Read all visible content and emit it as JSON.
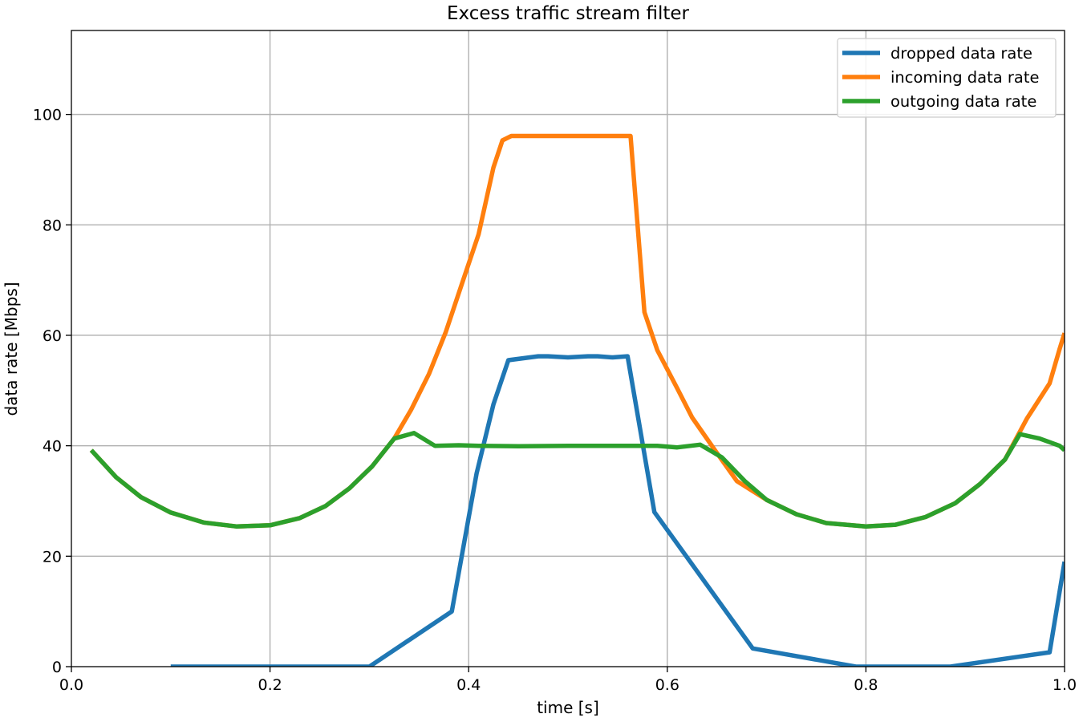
{
  "chart_data": {
    "type": "line",
    "title": "Excess traffic stream filter",
    "xlabel": "time [s]",
    "ylabel": "data rate [Mbps]",
    "xlim": [
      0.0,
      1.0
    ],
    "ylim": [
      0,
      115.2
    ],
    "xticks": [
      0.0,
      0.2,
      0.4,
      0.6,
      0.8,
      1.0
    ],
    "xtick_labels": [
      "0.0",
      "0.2",
      "0.4",
      "0.6",
      "0.8",
      "1.0"
    ],
    "yticks": [
      0,
      20,
      40,
      60,
      80,
      100
    ],
    "ytick_labels": [
      "0",
      "20",
      "40",
      "60",
      "80",
      "100"
    ],
    "grid": true,
    "legend_position": "top-right",
    "series": [
      {
        "name": "dropped data rate",
        "color": "#1f77b4",
        "x": [
          0.1,
          0.2,
          0.3,
          0.383,
          0.408,
          0.425,
          0.44,
          0.47,
          0.48,
          0.5,
          0.52,
          0.53,
          0.545,
          0.56,
          0.587,
          0.686,
          0.79,
          0.885,
          0.985,
          1.0
        ],
        "y": [
          0,
          0,
          0,
          10,
          35,
          47.5,
          55.5,
          56.2,
          56.2,
          56,
          56.2,
          56.2,
          56,
          56.2,
          28,
          3.3,
          0,
          0,
          2.6,
          19
        ]
      },
      {
        "name": "incoming data rate",
        "color": "#ff7f0e",
        "x": [
          0.02,
          0.045,
          0.07,
          0.1,
          0.133,
          0.166,
          0.2,
          0.23,
          0.256,
          0.28,
          0.303,
          0.325,
          0.342,
          0.36,
          0.377,
          0.393,
          0.41,
          0.425,
          0.434,
          0.443,
          0.55,
          0.563,
          0.577,
          0.59,
          0.61,
          0.625,
          0.648,
          0.67,
          0.7,
          0.73,
          0.76,
          0.8,
          0.83,
          0.86,
          0.89,
          0.915,
          0.94,
          0.962,
          0.985,
          0.995,
          1.0
        ],
        "y": [
          39.2,
          34.3,
          30.7,
          27.9,
          26.1,
          25.4,
          25.6,
          26.9,
          29.1,
          32.3,
          36.3,
          41.3,
          46.5,
          53,
          60.6,
          69.2,
          78.3,
          90.4,
          95.3,
          96.1,
          96.1,
          96.1,
          64.2,
          57.3,
          50.4,
          45.1,
          39.2,
          33.6,
          30.2,
          27.6,
          26,
          25.4,
          25.7,
          27.1,
          29.6,
          33.1,
          37.5,
          44.9,
          51.3,
          57.5,
          60.4
        ]
      },
      {
        "name": "outgoing data rate",
        "color": "#2ca02c",
        "x": [
          0.02,
          0.045,
          0.07,
          0.1,
          0.133,
          0.166,
          0.2,
          0.23,
          0.256,
          0.28,
          0.303,
          0.325,
          0.345,
          0.366,
          0.39,
          0.41,
          0.45,
          0.5,
          0.55,
          0.59,
          0.61,
          0.633,
          0.655,
          0.678,
          0.7,
          0.73,
          0.76,
          0.8,
          0.83,
          0.86,
          0.89,
          0.915,
          0.94,
          0.955,
          0.975,
          0.995,
          1.0
        ],
        "y": [
          39.2,
          34.3,
          30.7,
          27.9,
          26.1,
          25.4,
          25.6,
          26.9,
          29.1,
          32.3,
          36.3,
          41.3,
          42.3,
          40.0,
          40.1,
          40.0,
          39.9,
          40.0,
          40.0,
          40.0,
          39.7,
          40.2,
          37.9,
          33.6,
          30.2,
          27.6,
          26,
          25.4,
          25.7,
          27.1,
          29.6,
          33.1,
          37.5,
          42.1,
          41.3,
          40,
          39.2
        ]
      }
    ]
  }
}
